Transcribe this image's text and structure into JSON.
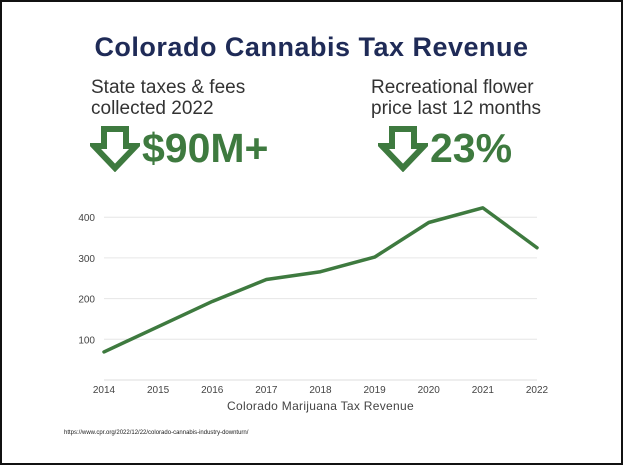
{
  "slide": {
    "title": "Colorado Cannabis Tax Revenue",
    "stat_left": {
      "label_line1": "State taxes & fees",
      "label_line2": "collected 2022",
      "value": "$90M+",
      "icon": "down-arrow-icon"
    },
    "stat_right": {
      "label_line1": "Recreational flower",
      "label_line2": "price last 12 months",
      "value": "23%",
      "icon": "down-arrow-icon"
    },
    "source": "https://www.cpr.org/2022/12/22/colorado-cannabis-industry-downturn/"
  },
  "colors": {
    "title": "#1f2b57",
    "accent": "#3e7a3f",
    "grid": "#e6e6e6"
  },
  "chart_data": {
    "type": "line",
    "title": "",
    "xlabel": "Colorado Marijuana Tax Revenue",
    "ylabel": "",
    "categories": [
      "2014",
      "2015",
      "2016",
      "2017",
      "2018",
      "2019",
      "2020",
      "2021",
      "2022"
    ],
    "series": [
      {
        "values": [
          69,
          131,
          193,
          247,
          266,
          302,
          387,
          423,
          325
        ]
      }
    ],
    "yticks": [
      100,
      200,
      300,
      400
    ],
    "ylim": [
      0,
      430
    ],
    "grid": true
  }
}
